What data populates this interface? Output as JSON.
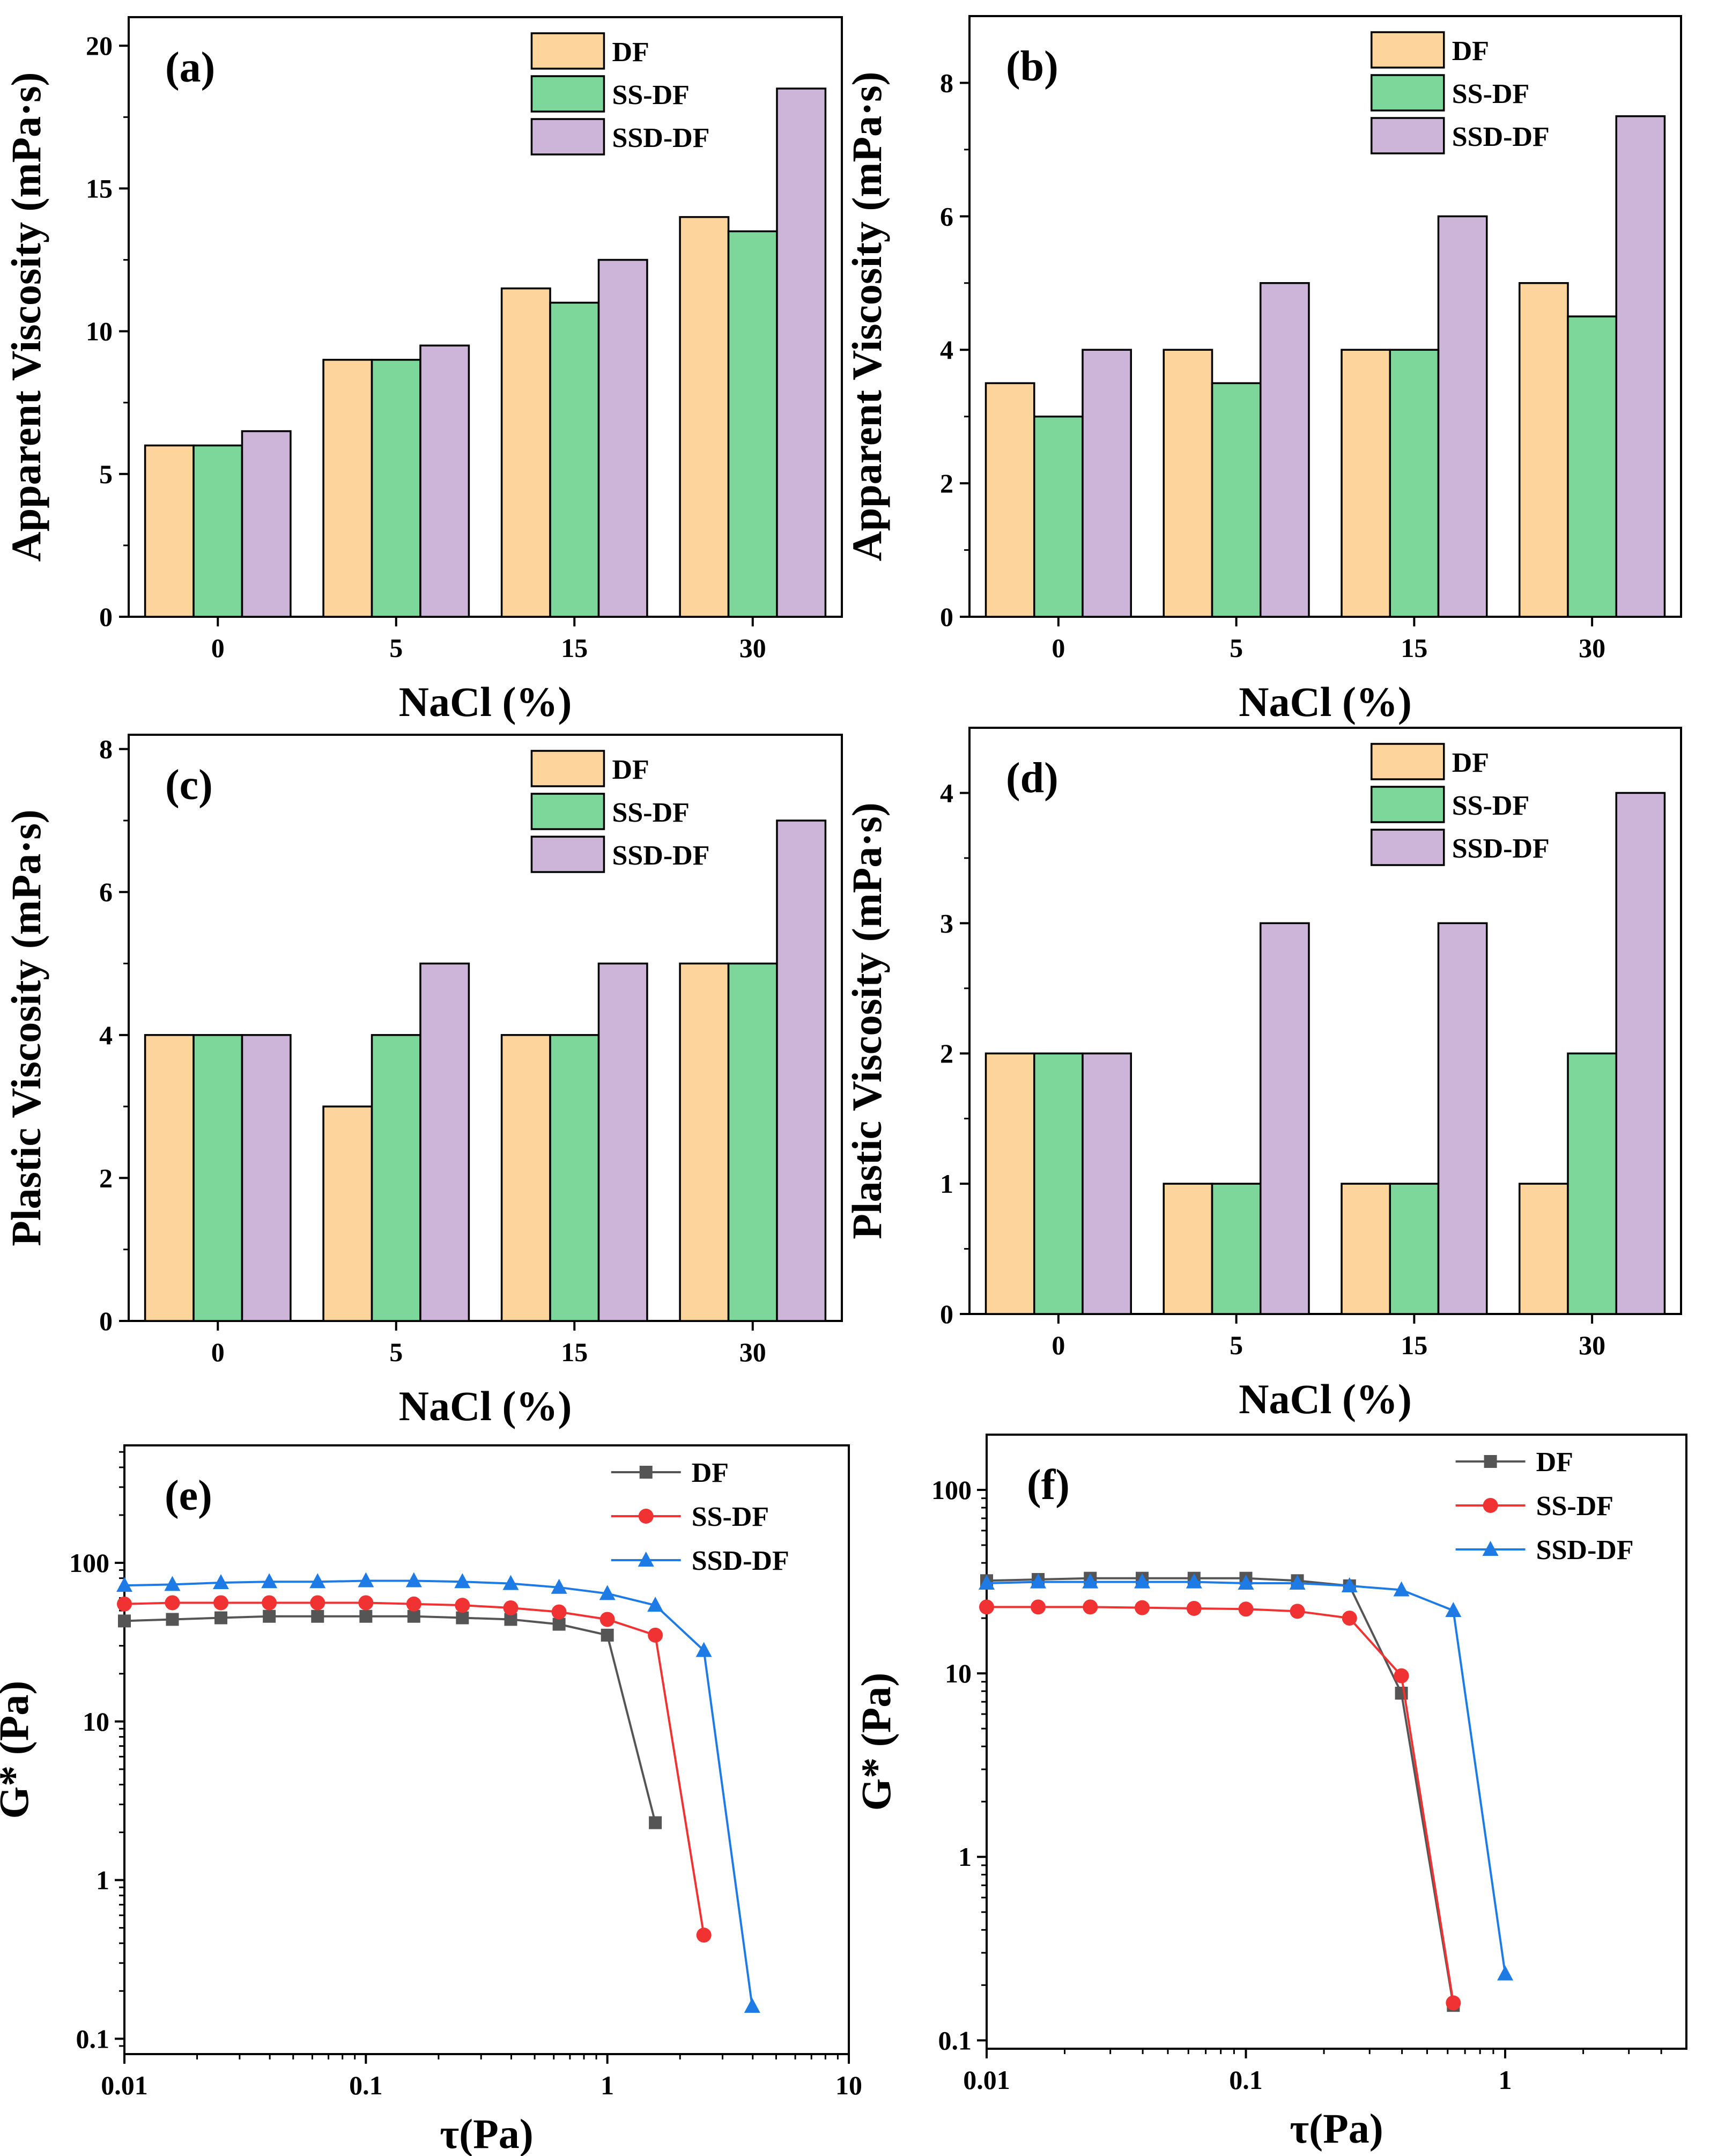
{
  "colors": {
    "DF": "#FED49D",
    "SS-DF": "#7DD69A",
    "SSD-DF": "#CDB5D9",
    "line_DF": "#555555",
    "line_SS-DF": "#F03232",
    "line_SSD-DF": "#1E7BE6"
  },
  "chart_data": [
    {
      "id": "a",
      "type": "bar",
      "panel_label": "(a)",
      "xlabel": "NaCl (%)",
      "ylabel": "Apparent Viscosity (mPa·s)",
      "categories": [
        "0",
        "5",
        "15",
        "30"
      ],
      "ylim": [
        0,
        21
      ],
      "yticks": [
        0,
        5,
        10,
        15,
        20
      ],
      "legend": "top-right",
      "series": [
        {
          "name": "DF",
          "values": [
            6,
            9,
            11.5,
            14
          ]
        },
        {
          "name": "SS-DF",
          "values": [
            6,
            9,
            11,
            13.5
          ]
        },
        {
          "name": "SSD-DF",
          "values": [
            6.5,
            9.5,
            12.5,
            18.5
          ]
        }
      ]
    },
    {
      "id": "b",
      "type": "bar",
      "panel_label": "(b)",
      "xlabel": "NaCl (%)",
      "ylabel": "Apparent Viscosity (mPa·s)",
      "categories": [
        "0",
        "5",
        "15",
        "30"
      ],
      "ylim": [
        0,
        9
      ],
      "yticks": [
        0,
        2,
        4,
        6,
        8
      ],
      "legend": "top-right",
      "series": [
        {
          "name": "DF",
          "values": [
            3.5,
            4,
            4,
            5
          ]
        },
        {
          "name": "SS-DF",
          "values": [
            3,
            3.5,
            4,
            4.5
          ]
        },
        {
          "name": "SSD-DF",
          "values": [
            4,
            5,
            6,
            7.5
          ]
        }
      ]
    },
    {
      "id": "c",
      "type": "bar",
      "panel_label": "(c)",
      "xlabel": "NaCl (%)",
      "ylabel": "Plastic Viscosity (mPa·s)",
      "categories": [
        "0",
        "5",
        "15",
        "30"
      ],
      "ylim": [
        0,
        8.2
      ],
      "yticks": [
        0,
        2,
        4,
        6,
        8
      ],
      "legend": "top-right",
      "series": [
        {
          "name": "DF",
          "values": [
            4,
            3,
            4,
            5
          ]
        },
        {
          "name": "SS-DF",
          "values": [
            4,
            4,
            4,
            5
          ]
        },
        {
          "name": "SSD-DF",
          "values": [
            4,
            5,
            5,
            7
          ]
        }
      ]
    },
    {
      "id": "d",
      "type": "bar",
      "panel_label": "(d)",
      "xlabel": "NaCl (%)",
      "ylabel": "Plastic Viscosity (mPa·s)",
      "categories": [
        "0",
        "5",
        "15",
        "30"
      ],
      "ylim": [
        0,
        4.5
      ],
      "yticks": [
        0,
        1,
        2,
        3,
        4
      ],
      "legend": "top-right",
      "series": [
        {
          "name": "DF",
          "values": [
            2,
            1,
            1,
            1
          ]
        },
        {
          "name": "SS-DF",
          "values": [
            2,
            1,
            1,
            2
          ]
        },
        {
          "name": "SSD-DF",
          "values": [
            2,
            3,
            3,
            4
          ]
        }
      ]
    },
    {
      "id": "e",
      "type": "line",
      "panel_label": "(e)",
      "xlabel": "τ(Pa)",
      "ylabel": "G* (Pa)",
      "xscale": "log",
      "yscale": "log",
      "xlim": [
        0.01,
        10
      ],
      "ylim": [
        0.08,
        550
      ],
      "xticks": [
        0.01,
        0.1,
        1,
        10
      ],
      "xtick_labels": [
        "0.01",
        "0.1",
        "1",
        "10"
      ],
      "yticks": [
        0.1,
        1,
        10,
        100
      ],
      "ytick_labels": [
        "0.1",
        "1",
        "10",
        "100"
      ],
      "legend": "top-right",
      "series": [
        {
          "name": "DF",
          "marker": "square",
          "x": [
            0.01,
            0.0158,
            0.0251,
            0.0398,
            0.0631,
            0.1,
            0.158,
            0.251,
            0.398,
            0.631,
            1.0,
            1.58
          ],
          "y": [
            43,
            44,
            45,
            46,
            46,
            46,
            46,
            45,
            44,
            41,
            35,
            2.3
          ]
        },
        {
          "name": "SS-DF",
          "marker": "circle",
          "x": [
            0.01,
            0.0158,
            0.0251,
            0.0398,
            0.0631,
            0.1,
            0.158,
            0.251,
            0.398,
            0.631,
            1.0,
            1.58,
            2.51
          ],
          "y": [
            55,
            56,
            56,
            56,
            56,
            56,
            55,
            54,
            52,
            49,
            44,
            35,
            0.45
          ]
        },
        {
          "name": "SSD-DF",
          "marker": "triangle",
          "x": [
            0.01,
            0.0158,
            0.0251,
            0.0398,
            0.0631,
            0.1,
            0.158,
            0.251,
            0.398,
            0.631,
            1.0,
            1.58,
            2.51,
            3.98
          ],
          "y": [
            72,
            73,
            75,
            76,
            76,
            77,
            77,
            76,
            74,
            70,
            64,
            54,
            28,
            0.16
          ]
        }
      ]
    },
    {
      "id": "f",
      "type": "line",
      "panel_label": "(f)",
      "xlabel": "τ(Pa)",
      "ylabel": "G* (Pa)",
      "xscale": "log",
      "yscale": "log",
      "xlim": [
        0.01,
        5
      ],
      "ylim": [
        0.09,
        200
      ],
      "xticks": [
        0.01,
        0.1,
        1
      ],
      "xtick_labels": [
        "0.01",
        "0.1",
        "1"
      ],
      "yticks": [
        0.1,
        1,
        10,
        100
      ],
      "ytick_labels": [
        "0.1",
        "1",
        "10",
        "100"
      ],
      "legend": "top-right",
      "series": [
        {
          "name": "DF",
          "marker": "square",
          "x": [
            0.01,
            0.0158,
            0.0251,
            0.0398,
            0.0631,
            0.1,
            0.158,
            0.251,
            0.398,
            0.631
          ],
          "y": [
            32,
            32.5,
            33,
            33,
            33,
            33,
            32,
            30,
            7.8,
            0.155
          ]
        },
        {
          "name": "SS-DF",
          "marker": "circle",
          "x": [
            0.01,
            0.0158,
            0.0251,
            0.0398,
            0.0631,
            0.1,
            0.158,
            0.251,
            0.398,
            0.631
          ],
          "y": [
            23,
            23,
            23,
            22.8,
            22.6,
            22.4,
            21.8,
            20,
            9.7,
            0.16
          ]
        },
        {
          "name": "SSD-DF",
          "marker": "triangle",
          "x": [
            0.01,
            0.0158,
            0.0251,
            0.0398,
            0.0631,
            0.1,
            0.158,
            0.251,
            0.398,
            0.631,
            1.0
          ],
          "y": [
            31,
            31.5,
            31.5,
            31.5,
            31.5,
            31,
            31,
            30,
            28.5,
            22,
            0.23
          ]
        }
      ]
    }
  ]
}
